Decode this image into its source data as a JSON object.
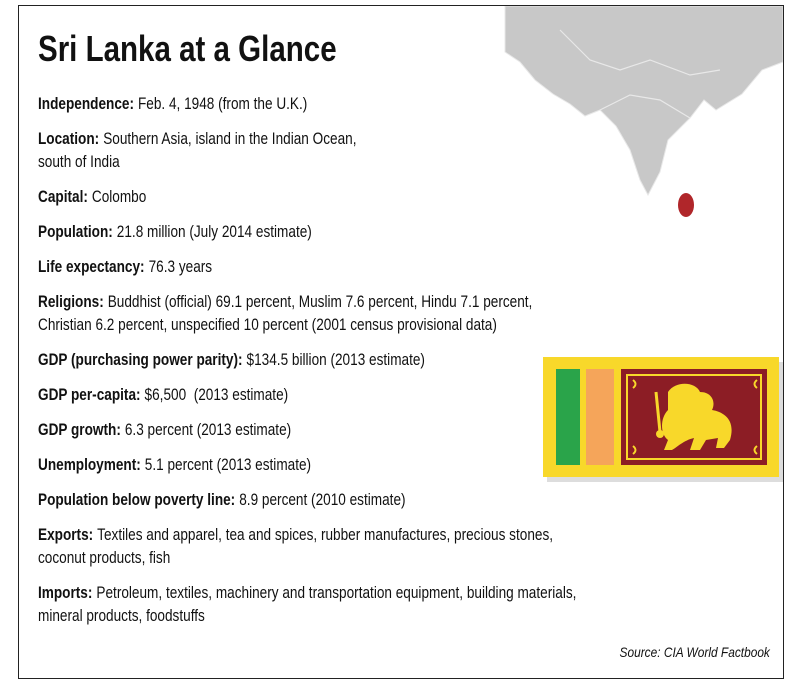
{
  "title": "Sri Lanka at a Glance",
  "facts": [
    {
      "label": "Independence:",
      "lines": [
        "Feb. 4, 1948 (from the U.K.)"
      ]
    },
    {
      "label": "Location:",
      "lines": [
        "Southern Asia, island in the Indian Ocean,",
        "south of India"
      ]
    },
    {
      "label": "Capital:",
      "lines": [
        "Colombo"
      ]
    },
    {
      "label": "Population:",
      "lines": [
        "21.8 million (July 2014 estimate)"
      ]
    },
    {
      "label": "Life expectancy:",
      "lines": [
        "76.3 years"
      ]
    },
    {
      "label": "Religions:",
      "lines": [
        "Buddhist (official) 69.1 percent, Muslim 7.6 percent, Hindu 7.1 percent,",
        "Christian 6.2 percent, unspecified 10 percent (2001 census provisional data)"
      ]
    },
    {
      "label": "GDP (purchasing power parity):",
      "lines": [
        "$134.5 billion (2013 estimate)"
      ]
    },
    {
      "label": "GDP per-capita:",
      "lines": [
        "$6,500  (2013 estimate)"
      ]
    },
    {
      "label": "GDP growth:",
      "lines": [
        "6.3 percent (2013 estimate)"
      ]
    },
    {
      "label": "Unemployment:",
      "lines": [
        "5.1 percent (2013 estimate)"
      ]
    },
    {
      "label": "Population below poverty line:",
      "lines": [
        "8.9 percent (2010 estimate)"
      ]
    },
    {
      "label": "Exports:",
      "lines": [
        "Textiles and apparel, tea and spices, rubber manufactures, precious stones,",
        "coconut products, fish"
      ]
    },
    {
      "label": "Imports:",
      "lines": [
        "Petroleum, textiles, machinery and transportation equipment, building materials,",
        "mineral products, foodstuffs"
      ]
    }
  ],
  "source": "Source: CIA World Factbook"
}
